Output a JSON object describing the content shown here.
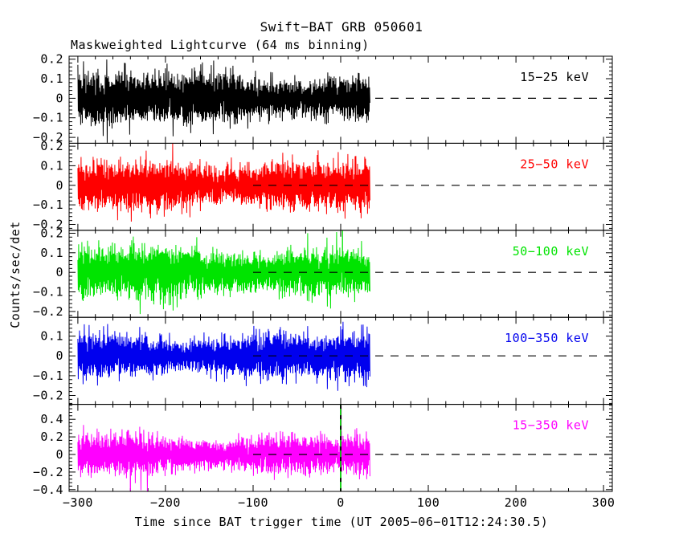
{
  "chart_data": {
    "type": "line",
    "title": "Swift−BAT GRB 050601",
    "subtitle": "Maskweighted Lightcurve (64 ms binning)",
    "xlabel": "Time since BAT trigger time (UT 2005−06−01T12:24:30.5)",
    "ylabel": "Counts/sec/det",
    "xlim": [
      -310,
      310
    ],
    "x_minor_step": 20,
    "x_ticks": [
      {
        "v": -300,
        "label": "−300"
      },
      {
        "v": -200,
        "label": "−200"
      },
      {
        "v": -100,
        "label": "−100"
      },
      {
        "v": 0,
        "label": "0"
      },
      {
        "v": 100,
        "label": "100"
      },
      {
        "v": 200,
        "label": "200"
      },
      {
        "v": 300,
        "label": "300"
      }
    ],
    "data_t_start": -300,
    "data_t_end": 33,
    "zero_line": {
      "style": "dashed",
      "color": "#000000",
      "t_start": -100,
      "t_end": 310
    },
    "trigger_line": {
      "t": 0,
      "color": "#00cc00",
      "style": "dashed",
      "panel_label": "15−350 keV"
    },
    "legend_position": "inside-right",
    "grid": false,
    "panels": [
      {
        "label": "15−25 keV",
        "color": "#000000",
        "ylim": [
          -0.23,
          0.215
        ],
        "y_minor_step": 0.02,
        "y_major_every": 5,
        "yticks": [
          {
            "v": 0.2,
            "label": "0.2"
          },
          {
            "v": 0.1,
            "label": "0.1"
          },
          {
            "v": 0,
            "label": "0"
          },
          {
            "v": -0.1,
            "label": "−0.1"
          },
          {
            "v": -0.2,
            "label": "−0.2"
          }
        ],
        "noise_sigma": 0.05,
        "seed": 7,
        "spikes": []
      },
      {
        "label": "25−50 keV",
        "color": "#ff0000",
        "ylim": [
          -0.23,
          0.215
        ],
        "y_minor_step": 0.02,
        "y_major_every": 5,
        "yticks": [
          {
            "v": 0.2,
            "label": "0.2"
          },
          {
            "v": 0.1,
            "label": "0.1"
          },
          {
            "v": 0,
            "label": "0"
          },
          {
            "v": -0.1,
            "label": "−0.1"
          },
          {
            "v": -0.2,
            "label": "−0.2"
          }
        ],
        "noise_sigma": 0.055,
        "seed": 21,
        "spikes": []
      },
      {
        "label": "50−100 keV",
        "color": "#00e400",
        "ylim": [
          -0.23,
          0.215
        ],
        "y_minor_step": 0.02,
        "y_major_every": 5,
        "yticks": [
          {
            "v": 0.2,
            "label": "0.2"
          },
          {
            "v": 0.1,
            "label": "0.1"
          },
          {
            "v": 0,
            "label": "0"
          },
          {
            "v": -0.1,
            "label": "−0.1"
          },
          {
            "v": -0.2,
            "label": "−0.2"
          }
        ],
        "noise_sigma": 0.055,
        "seed": 33,
        "spikes": [
          {
            "t": 2,
            "v": 0.245
          }
        ]
      },
      {
        "label": "100−350 keV",
        "color": "#0000ee",
        "ylim": [
          -0.245,
          0.195
        ],
        "y_minor_step": 0.02,
        "y_major_every": 5,
        "yticks": [
          {
            "v": 0.1,
            "label": "0.1"
          },
          {
            "v": 0,
            "label": "0"
          },
          {
            "v": -0.1,
            "label": "−0.1"
          },
          {
            "v": -0.2,
            "label": "−0.2"
          }
        ],
        "noise_sigma": 0.048,
        "seed": 47,
        "spikes": []
      },
      {
        "label": "15−350 keV",
        "color": "#ff00ff",
        "ylim": [
          -0.42,
          0.57
        ],
        "y_minor_step": 0.04,
        "y_major_every": 5,
        "yticks": [
          {
            "v": 0.4,
            "label": "0.4"
          },
          {
            "v": 0.2,
            "label": "0.2"
          },
          {
            "v": 0,
            "label": "0"
          },
          {
            "v": -0.2,
            "label": "−0.2"
          },
          {
            "v": -0.4,
            "label": "−0.4"
          }
        ],
        "noise_sigma": 0.1,
        "seed": 59,
        "spikes": [
          {
            "t": 0.5,
            "v": 0.55
          },
          {
            "t": -240,
            "v": -0.41
          }
        ]
      }
    ]
  }
}
